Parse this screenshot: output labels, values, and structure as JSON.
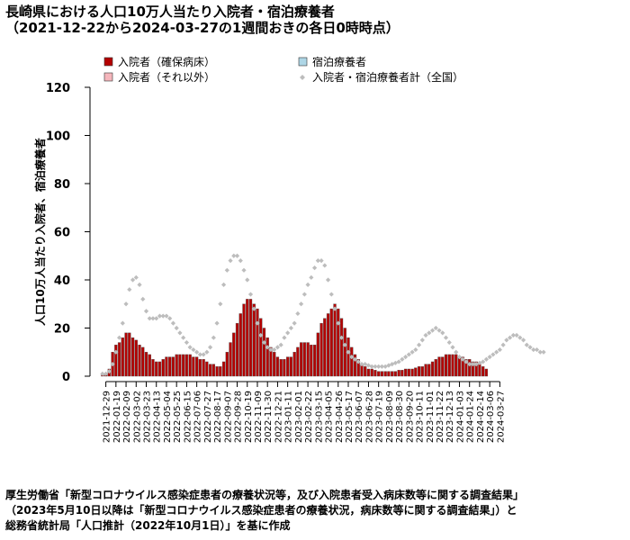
{
  "page": {
    "title_line1": "長崎県における人口10万人当たり入院者・宿泊療養者",
    "title_line2": "（2021-12-22から2024-03-27の1週間おきの各日0時時点）",
    "ylabel": "人口10万人当たり入院者、宿泊療養者",
    "source_lines": [
      "厚生労働省「新型コロナウイルス感染症患者の療養状況等，及び入院患者受入病床数等に関する調査結果」",
      "（2023年5月10日以降は「新型コロナウイルス感染症患者の療養状況，病床数等に関する調査結果」）と",
      "総務省統計局「人口推計（2022年10月1日）」を基に作成"
    ]
  },
  "chart_data": {
    "type": "bar",
    "stacked": true,
    "ylim": [
      0,
      120
    ],
    "yticks": [
      0,
      20,
      40,
      60,
      80,
      100,
      120
    ],
    "grid": false,
    "legend_position": "top",
    "colors": {
      "severe": "#b40000",
      "hospital_other": "#f5b6bc",
      "hotel": "#aed6e6",
      "total_marker": "#bdbdbd"
    },
    "legend": [
      {
        "key": "severe",
        "label": "入院者（確保病床）"
      },
      {
        "key": "hotel",
        "label": "宿泊療養者"
      },
      {
        "key": "hospital_other",
        "label": "入院者（それ以外）"
      },
      {
        "key": "total_marker",
        "label": "入院者・宿泊療養者計（全国）"
      }
    ],
    "x_start_date": "2021-12-22",
    "x_tick_labels": [
      "2021-12-29",
      "2022-01-19",
      "2022-02-09",
      "2022-03-02",
      "2022-03-23",
      "2022-04-13",
      "2022-05-04",
      "2022-05-25",
      "2022-06-15",
      "2022-07-06",
      "2022-07-27",
      "2022-08-17",
      "2022-09-07",
      "2022-09-28",
      "2022-10-19",
      "2022-11-09",
      "2022-11-30",
      "2022-12-21",
      "2023-01-11",
      "2023-02-01",
      "2023-02-22",
      "2023-03-15",
      "2023-04-05",
      "2023-04-26",
      "2023-05-17",
      "2023-06-07",
      "2023-06-28",
      "2023-07-19",
      "2023-08-09",
      "2023-08-30",
      "2023-09-20",
      "2023-10-11",
      "2023-11-01",
      "2023-11-22",
      "2023-12-13",
      "2024-01-03",
      "2024-01-24",
      "2024-02-14",
      "2024-03-06",
      "2024-03-27"
    ],
    "series": [
      {
        "name": "入院者（確保病床）",
        "key": "severe",
        "values": [
          0.5,
          1,
          3,
          10,
          13,
          14,
          16,
          18,
          18,
          16,
          15,
          13,
          12,
          10,
          9,
          7,
          6,
          6,
          7,
          8,
          8,
          8,
          9,
          9,
          9,
          9,
          9,
          8,
          8,
          7,
          7,
          6,
          5,
          5,
          4,
          4,
          6,
          10,
          14,
          18,
          22,
          26,
          30,
          32,
          32,
          30,
          28,
          24,
          20,
          16,
          12,
          10,
          8,
          7,
          7,
          8,
          8,
          10,
          12,
          14,
          14,
          14,
          13,
          13,
          18,
          22,
          24,
          26,
          28,
          30,
          28,
          24,
          20,
          16,
          12,
          9,
          7,
          5,
          4,
          3,
          3,
          2.5,
          2,
          2,
          2,
          2,
          2,
          2,
          2.5,
          2.5,
          3,
          3,
          3,
          3.5,
          4,
          4,
          5,
          5,
          6,
          7,
          8,
          8,
          9,
          9,
          9,
          9,
          8,
          8,
          7,
          7,
          6,
          6,
          5,
          4,
          3,
          0,
          0,
          0,
          0,
          0,
          0,
          0,
          0,
          0,
          0,
          0,
          0,
          0,
          0,
          0,
          0,
          0,
          0,
          0,
          0,
          0,
          0,
          0,
          0,
          0,
          0,
          0,
          0,
          0,
          0,
          0,
          0
        ]
      },
      {
        "name": "入院者（それ以外）",
        "key": "hospital_other",
        "values": [
          0,
          0,
          0,
          0,
          0,
          0,
          0,
          0,
          0,
          0,
          0,
          0,
          0,
          0,
          0,
          0,
          0,
          0,
          0,
          0,
          0,
          0,
          0,
          0,
          0,
          0,
          0,
          0,
          0,
          0,
          0,
          0,
          0,
          0,
          0,
          0,
          0,
          0,
          0,
          0,
          0,
          0,
          0,
          0,
          0,
          0,
          0,
          0,
          0,
          0,
          0,
          0,
          0,
          0,
          0,
          0,
          0,
          0,
          0,
          0,
          0,
          0,
          0,
          0,
          0,
          0,
          0,
          0,
          0,
          0,
          0,
          0,
          0,
          0,
          0,
          0,
          0,
          0,
          0,
          0,
          0,
          0,
          0,
          0,
          0,
          0,
          0,
          0,
          0,
          0,
          0,
          0,
          0,
          0,
          0,
          0,
          0,
          0,
          0,
          0,
          0,
          0,
          0,
          0,
          0,
          0,
          0,
          0,
          0,
          0,
          0,
          0,
          0,
          0,
          0,
          0,
          0,
          0,
          0,
          0,
          0,
          0,
          0,
          0,
          0,
          0,
          0,
          0,
          0,
          0,
          0,
          0,
          0,
          0,
          0,
          0,
          0,
          0,
          0,
          0,
          0,
          0,
          0,
          0,
          0,
          0,
          0,
          0,
          0,
          0,
          0,
          0,
          0,
          0,
          0,
          0,
          0,
          0,
          0,
          0,
          0,
          0,
          0,
          0,
          0,
          0,
          0,
          0,
          0,
          0,
          0,
          0,
          0,
          0,
          0
        ]
      },
      {
        "name": "宿泊療養者",
        "key": "hotel",
        "values": [
          0,
          0,
          0,
          0,
          0,
          0,
          0,
          0,
          0,
          0,
          0,
          0,
          0,
          0,
          0,
          0,
          0,
          0,
          0,
          0,
          0,
          0,
          0,
          0,
          0,
          0,
          0,
          0,
          0,
          0,
          0,
          0,
          0,
          0,
          0,
          0,
          0,
          0,
          0,
          0,
          0,
          0,
          0,
          0,
          0,
          0,
          0,
          0,
          0,
          0,
          0,
          0,
          0,
          0,
          0,
          0,
          0,
          0,
          0,
          0,
          0,
          0,
          0,
          0,
          0,
          0,
          0,
          0,
          0,
          0,
          0,
          0,
          0,
          0,
          0,
          0,
          0,
          0,
          0,
          0,
          0,
          0,
          0,
          0,
          0,
          0,
          0,
          0,
          0,
          0,
          0,
          0,
          0,
          0,
          0,
          0,
          0,
          0,
          0,
          0,
          0,
          0,
          0,
          0,
          0,
          0,
          0,
          0,
          0,
          0,
          0,
          0,
          0,
          0,
          0,
          0,
          0,
          0,
          0,
          0,
          0,
          0,
          0,
          0,
          0,
          0,
          0,
          0,
          0,
          0,
          0,
          0,
          0,
          0,
          0,
          0,
          0,
          0,
          0,
          0,
          0,
          0,
          0,
          0,
          0,
          0,
          0,
          0,
          0,
          0,
          0,
          0,
          0,
          0,
          0,
          0,
          0,
          0,
          0,
          0,
          0,
          0,
          0,
          0,
          0,
          0,
          0,
          0,
          0,
          0,
          0,
          0,
          0,
          0,
          0
        ]
      },
      {
        "name": "入院者・宿泊療養者計（全国）",
        "key": "national",
        "values": [
          1,
          1,
          2,
          5,
          10,
          16,
          22,
          30,
          36,
          40,
          41,
          38,
          32,
          27,
          24,
          24,
          24,
          25,
          25,
          25,
          24,
          22,
          20,
          18,
          16,
          14,
          12,
          11,
          10,
          9,
          9,
          10,
          12,
          16,
          22,
          30,
          38,
          44,
          48,
          50,
          50,
          48,
          44,
          40,
          34,
          28,
          22,
          17,
          14,
          12,
          11,
          11,
          12,
          13,
          16,
          18,
          20,
          22,
          26,
          30,
          34,
          38,
          41,
          45,
          48,
          48,
          46,
          40,
          34,
          28,
          22,
          16,
          13,
          10,
          8,
          7,
          6,
          5,
          5,
          4.5,
          4,
          4,
          4,
          4,
          4,
          4.5,
          5,
          5.5,
          6,
          7,
          8,
          9,
          10,
          11,
          13,
          15,
          17,
          18,
          19,
          20,
          19,
          18,
          16,
          14,
          12,
          10,
          8,
          7,
          6,
          5,
          5,
          5,
          5.5,
          6,
          7,
          8,
          9,
          10,
          11,
          13,
          15,
          16,
          17,
          17,
          16,
          15,
          13,
          12,
          11,
          11,
          10,
          10,
          0,
          0,
          0,
          0,
          0,
          0,
          0,
          0,
          0,
          0,
          0,
          0,
          0,
          0,
          0,
          0,
          0,
          0,
          0,
          0,
          0,
          0,
          0,
          0,
          0,
          0,
          0,
          0,
          0,
          0,
          0,
          0,
          0,
          0,
          0,
          0,
          0,
          0,
          0,
          0,
          0,
          0,
          0,
          0
        ]
      }
    ]
  }
}
